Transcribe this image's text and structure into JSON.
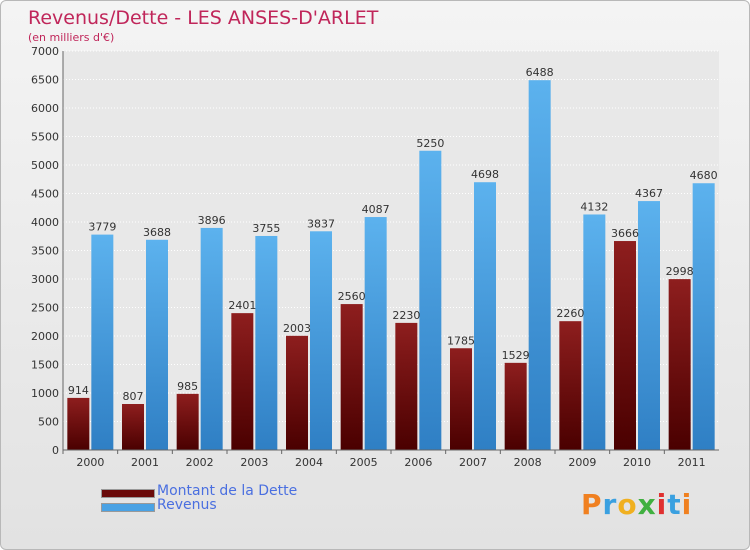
{
  "header": {
    "title": "Revenus/Dette - LES ANSES-D'ARLET",
    "subtitle": "(en milliers d'€)"
  },
  "brand": {
    "text": "Proxiti",
    "colors": [
      "#f08020",
      "#3aa0e0",
      "#f0b020",
      "#40b040",
      "#e03030",
      "#3aa0e0",
      "#f08020"
    ]
  },
  "chart_data": {
    "type": "bar",
    "categories": [
      "2000",
      "2001",
      "2002",
      "2003",
      "2004",
      "2005",
      "2006",
      "2007",
      "2008",
      "2009",
      "2010",
      "2011"
    ],
    "series": [
      {
        "name": "Montant de la Dette",
        "color": "#7a1010",
        "values": [
          914,
          807,
          985,
          2401,
          2003,
          2560,
          2230,
          1785,
          1529,
          2260,
          3666,
          2998
        ]
      },
      {
        "name": "Revenus",
        "color": "#4aa2e4",
        "values": [
          3779,
          3688,
          3896,
          3755,
          3837,
          4087,
          5250,
          4698,
          6488,
          4132,
          4367,
          4680
        ]
      }
    ],
    "ylim": [
      0,
      7000
    ],
    "yticks": [
      0,
      500,
      1000,
      1500,
      2000,
      2500,
      3000,
      3500,
      4000,
      4500,
      5000,
      5500,
      6000,
      6500,
      7000
    ],
    "grid": true,
    "legend": "bottom-left"
  }
}
